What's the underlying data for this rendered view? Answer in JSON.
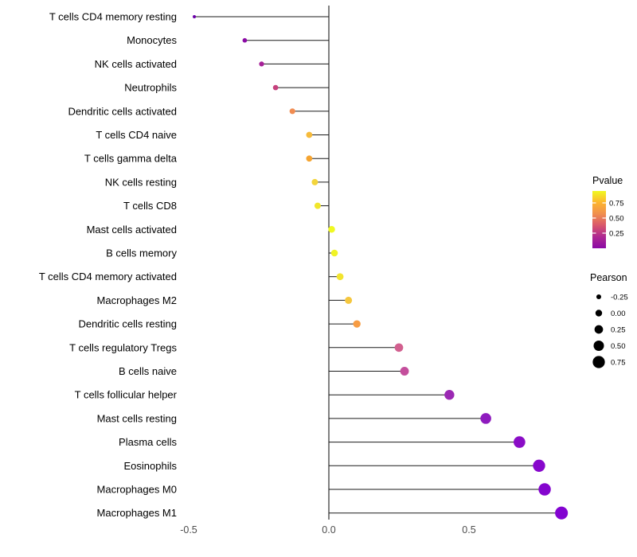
{
  "chart_data": {
    "type": "scatter",
    "subtype": "lollipop",
    "title": "",
    "xlabel": "",
    "ylabel": "",
    "xlim": [
      -0.53,
      0.9
    ],
    "x_ticks": [
      -0.5,
      0.0,
      0.5
    ],
    "x_tick_labels": [
      "-0.5",
      "0.0",
      "0.5"
    ],
    "grid": "off",
    "zero_line": true,
    "points": [
      {
        "label": "T cells CD4 memory resting",
        "pearson": -0.48,
        "color": "#6A00A8"
      },
      {
        "label": "Monocytes",
        "pearson": -0.3,
        "color": "#8B0AA5"
      },
      {
        "label": "NK cells activated",
        "pearson": -0.24,
        "color": "#A62098"
      },
      {
        "label": "Neutrophils",
        "pearson": -0.19,
        "color": "#C6417D"
      },
      {
        "label": "Dendritic cells activated",
        "pearson": -0.13,
        "color": "#F18C51"
      },
      {
        "label": "T cells CD4 naive",
        "pearson": -0.07,
        "color": "#F6BB3C"
      },
      {
        "label": "T cells gamma delta",
        "pearson": -0.07,
        "color": "#F5A431"
      },
      {
        "label": "NK cells resting",
        "pearson": -0.05,
        "color": "#F3D53C"
      },
      {
        "label": "T cells CD8",
        "pearson": -0.04,
        "color": "#F1E62B"
      },
      {
        "label": "Mast cells activated",
        "pearson": 0.01,
        "color": "#F0F921"
      },
      {
        "label": "B cells memory",
        "pearson": 0.02,
        "color": "#F0F326"
      },
      {
        "label": "T cells CD4 memory activated",
        "pearson": 0.04,
        "color": "#F2E42F"
      },
      {
        "label": "Macrophages M2",
        "pearson": 0.07,
        "color": "#F5C73E"
      },
      {
        "label": "Dendritic cells resting",
        "pearson": 0.1,
        "color": "#F79C43"
      },
      {
        "label": "T cells regulatory  Tregs",
        "pearson": 0.25,
        "color": "#D2608F"
      },
      {
        "label": "B cells naive",
        "pearson": 0.27,
        "color": "#C44E9C"
      },
      {
        "label": "T cells follicular helper",
        "pearson": 0.43,
        "color": "#9B28B3"
      },
      {
        "label": "Mast cells resting",
        "pearson": 0.56,
        "color": "#8E1BBE"
      },
      {
        "label": "Plasma cells",
        "pearson": 0.68,
        "color": "#8A0DC6"
      },
      {
        "label": "Eosinophils",
        "pearson": 0.75,
        "color": "#8707CC"
      },
      {
        "label": "Macrophages M0",
        "pearson": 0.77,
        "color": "#8405CE"
      },
      {
        "label": "Macrophages M1",
        "pearson": 0.83,
        "color": "#8303D1"
      }
    ],
    "legend_position": "right",
    "legends": {
      "pvalue": {
        "title": "Pvalue",
        "tick_labels": [
          "0.75",
          "0.50",
          "0.25"
        ],
        "gradient_top_to_bottom": [
          "#F0F921",
          "#FDB52E",
          "#F08F4F",
          "#D9576C",
          "#AE2892",
          "#8B0AA5"
        ]
      },
      "pearson": {
        "title": "Pearson",
        "items": [
          {
            "label": "-0.25",
            "value": -0.25
          },
          {
            "label": "0.00",
            "value": 0.0
          },
          {
            "label": "0.25",
            "value": 0.25
          },
          {
            "label": "0.50",
            "value": 0.5
          },
          {
            "label": "0.75",
            "value": 0.75
          }
        ]
      }
    },
    "style": {
      "stem_color": "#1a1a1a",
      "axis_line_color": "#000000",
      "tick_label_color": "#4D4D4D",
      "category_label_color": "#000000",
      "legend_title_color": "#000000",
      "background": "#ffffff"
    }
  }
}
